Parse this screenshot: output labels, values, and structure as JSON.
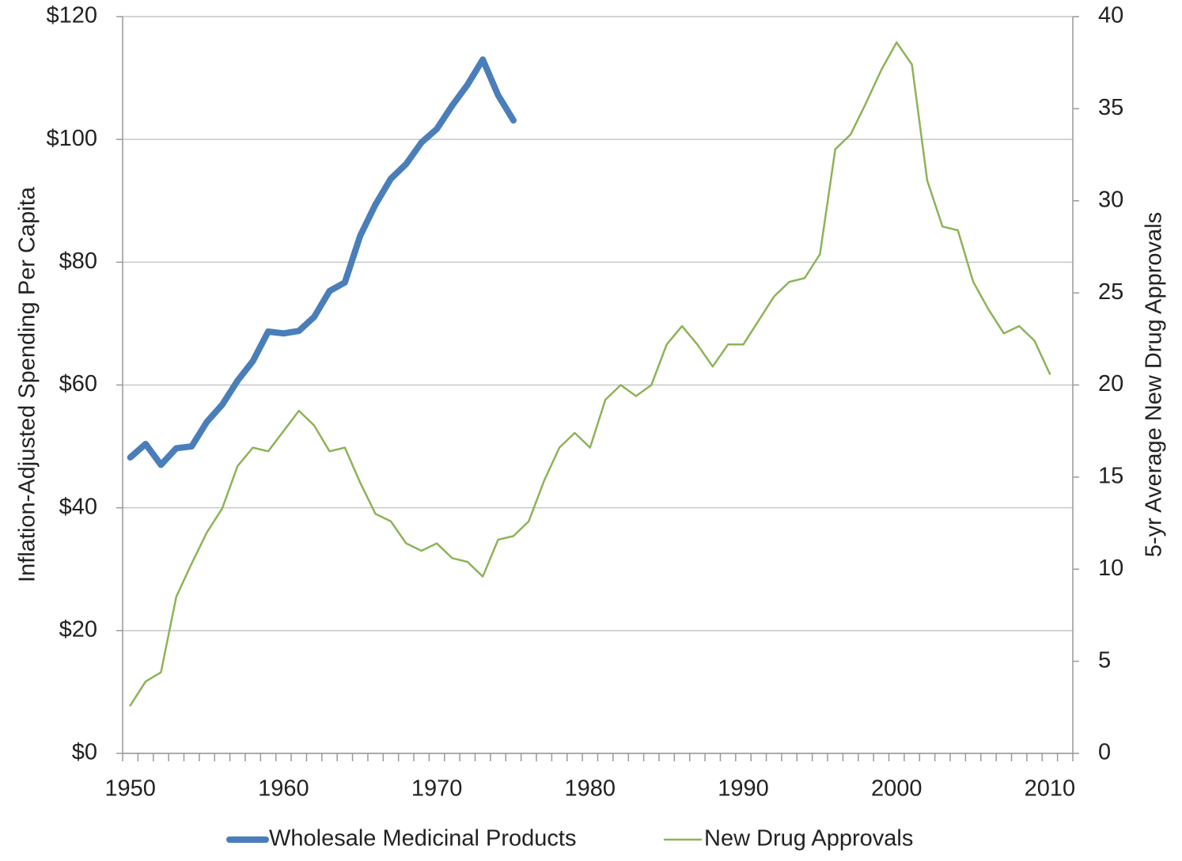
{
  "chart_data": {
    "type": "line",
    "y_label": "Inflation-Adjusted Spending Per Capita",
    "y2_label": "5-yr Average New Drug Approvals",
    "x": [
      1950,
      1951,
      1952,
      1953,
      1954,
      1955,
      1956,
      1957,
      1958,
      1959,
      1960,
      1961,
      1962,
      1963,
      1964,
      1965,
      1966,
      1967,
      1968,
      1969,
      1970,
      1971,
      1972,
      1973,
      1974,
      1975,
      1976,
      1977,
      1978,
      1979,
      1980,
      1981,
      1982,
      1983,
      1984,
      1985,
      1986,
      1987,
      1988,
      1989,
      1990,
      1991,
      1992,
      1993,
      1994,
      1995,
      1996,
      1997,
      1998,
      1999,
      2000,
      2001,
      2002,
      2003,
      2004,
      2005,
      2006,
      2007,
      2008,
      2009,
      2010
    ],
    "xlim": [
      1949.5,
      2011.5
    ],
    "xticks": [
      1950,
      1960,
      1970,
      1980,
      1990,
      2000,
      2010
    ],
    "ylim": [
      0,
      120
    ],
    "yticks": [
      {
        "value": 0,
        "label": "$0"
      },
      {
        "value": 20,
        "label": "$20"
      },
      {
        "value": 40,
        "label": "$40"
      },
      {
        "value": 60,
        "label": "$60"
      },
      {
        "value": 80,
        "label": "$80"
      },
      {
        "value": 100,
        "label": "$100"
      },
      {
        "value": 120,
        "label": "$120"
      }
    ],
    "y2lim": [
      0,
      40
    ],
    "y2ticks": [
      0,
      5,
      10,
      15,
      20,
      25,
      30,
      35,
      40
    ],
    "grid": true,
    "legend": "bottom",
    "series": [
      {
        "name": "Wholesale Medicinal Products",
        "color": "#4a7ebb",
        "width": 8,
        "values": [
          48.2,
          50.4,
          47,
          49.7,
          50,
          54,
          56.8,
          60.7,
          63.9,
          68.7,
          68.4,
          68.8,
          71.1,
          75.3,
          76.7,
          84.3,
          89.4,
          93.6,
          96,
          99.5,
          101.7,
          105.5,
          108.9,
          113,
          107.2,
          103.1,
          null,
          null,
          null,
          null,
          null,
          null,
          null,
          null,
          null,
          null,
          null,
          null,
          null,
          null,
          null,
          null,
          null,
          null,
          null,
          null,
          null,
          null,
          null,
          null,
          null,
          null,
          null,
          null,
          null,
          null,
          null,
          null,
          null,
          null,
          null
        ]
      },
      {
        "name": "New Drug Approvals",
        "color": "#8db356",
        "width": 2.5,
        "axis": "y2",
        "values": [
          2.6,
          3.9,
          4.4,
          8.5,
          10.3,
          12,
          13.3,
          15.6,
          16.6,
          16.4,
          17.5,
          18.6,
          17.8,
          16.4,
          16.6,
          14.7,
          13,
          12.6,
          11.4,
          11,
          11.4,
          10.6,
          10.4,
          9.6,
          11.6,
          11.8,
          12.6,
          14.8,
          16.6,
          17.4,
          16.6,
          19.2,
          20,
          19.4,
          20,
          22.2,
          23.2,
          22.2,
          21,
          22.2,
          22.2,
          23.5,
          24.8,
          25.6,
          25.8,
          27.1,
          32.8,
          33.6,
          35.3,
          37.1,
          38.6,
          37.4,
          31.1,
          28.6,
          28.4,
          25.6,
          24.1,
          22.8,
          23.2,
          22.4,
          20.6
        ]
      }
    ]
  }
}
